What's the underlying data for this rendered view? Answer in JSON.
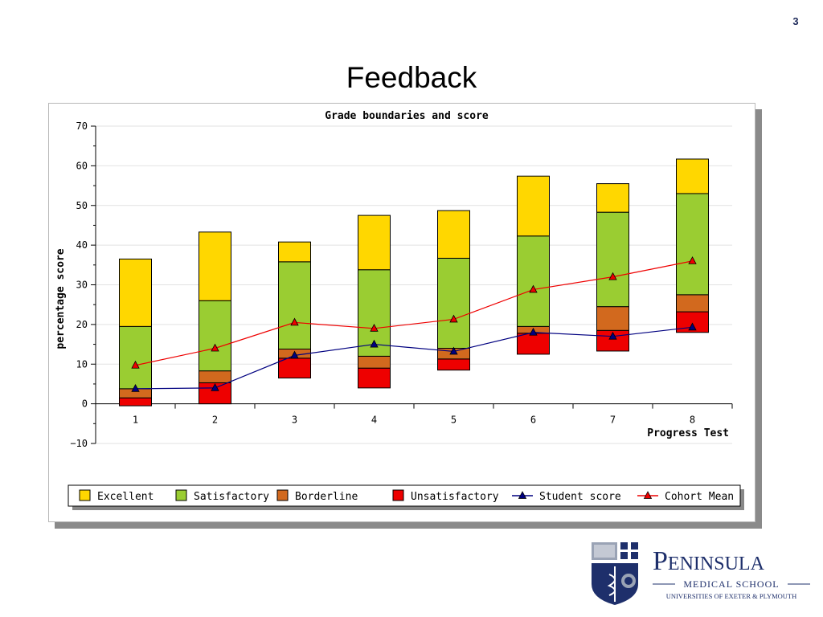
{
  "slide": {
    "title": "Feedback",
    "page_number": "3"
  },
  "logo": {
    "name": "Peninsula",
    "line2": "Medical School",
    "line3": "Universities of Exeter & Plymouth"
  },
  "colors": {
    "excellent": "#ffd700",
    "satisfactory": "#9acd32",
    "borderline": "#d2691e",
    "unsatisfactory": "#ee0000",
    "student": "#000080",
    "cohort": "#ee0000",
    "logo_blue": "#1e2f6b"
  },
  "chart_data": {
    "type": "bar",
    "title": "Grade boundaries and score",
    "xlabel": "Progress Test",
    "ylabel": "percentage score",
    "ylim": [
      -10,
      70
    ],
    "yticks": [
      -10,
      0,
      10,
      20,
      30,
      40,
      50,
      60,
      70
    ],
    "grid": true,
    "legend_position": "bottom",
    "categories": [
      "1",
      "2",
      "3",
      "4",
      "5",
      "6",
      "7",
      "8"
    ],
    "stacked_bands": [
      {
        "name": "Unsatisfactory",
        "color_key": "unsatisfactory",
        "low": [
          -0.5,
          0,
          6.5,
          4,
          8.5,
          12.5,
          13.3,
          18
        ],
        "high": [
          1.5,
          5.3,
          11.5,
          9,
          11.3,
          17.8,
          18.5,
          23.2
        ]
      },
      {
        "name": "Borderline",
        "color_key": "borderline",
        "low": [
          1.5,
          5.3,
          11.5,
          9,
          11.3,
          17.8,
          18.5,
          23.2
        ],
        "high": [
          3.8,
          8.3,
          13.8,
          12,
          14,
          19.5,
          24.5,
          27.5
        ]
      },
      {
        "name": "Satisfactory",
        "color_key": "satisfactory",
        "low": [
          3.8,
          8.3,
          13.8,
          12,
          14,
          19.5,
          24.5,
          27.5
        ],
        "high": [
          19.5,
          26,
          35.8,
          33.8,
          36.7,
          42.3,
          48.3,
          53
        ]
      },
      {
        "name": "Excellent",
        "color_key": "excellent",
        "low": [
          19.5,
          26,
          35.8,
          33.8,
          36.7,
          42.3,
          48.3,
          53
        ],
        "high": [
          36.5,
          43.3,
          40.8,
          47.5,
          48.7,
          57.4,
          55.5,
          61.7
        ]
      }
    ],
    "lines": [
      {
        "name": "Student score",
        "color_key": "student",
        "values": [
          3.8,
          4,
          12.2,
          15,
          13.2,
          18,
          17,
          19.3
        ]
      },
      {
        "name": "Cohort Mean",
        "color_key": "cohort",
        "values": [
          9.7,
          14,
          20.5,
          19,
          21.3,
          28.8,
          32,
          36
        ]
      }
    ],
    "legend": [
      {
        "label": "Excellent",
        "kind": "box",
        "color_key": "excellent"
      },
      {
        "label": "Satisfactory",
        "kind": "box",
        "color_key": "satisfactory"
      },
      {
        "label": "Borderline",
        "kind": "box",
        "color_key": "borderline"
      },
      {
        "label": "Unsatisfactory",
        "kind": "box",
        "color_key": "unsatisfactory"
      },
      {
        "label": "Student score",
        "kind": "line",
        "color_key": "student"
      },
      {
        "label": "Cohort Mean",
        "kind": "line",
        "color_key": "cohort"
      }
    ]
  }
}
